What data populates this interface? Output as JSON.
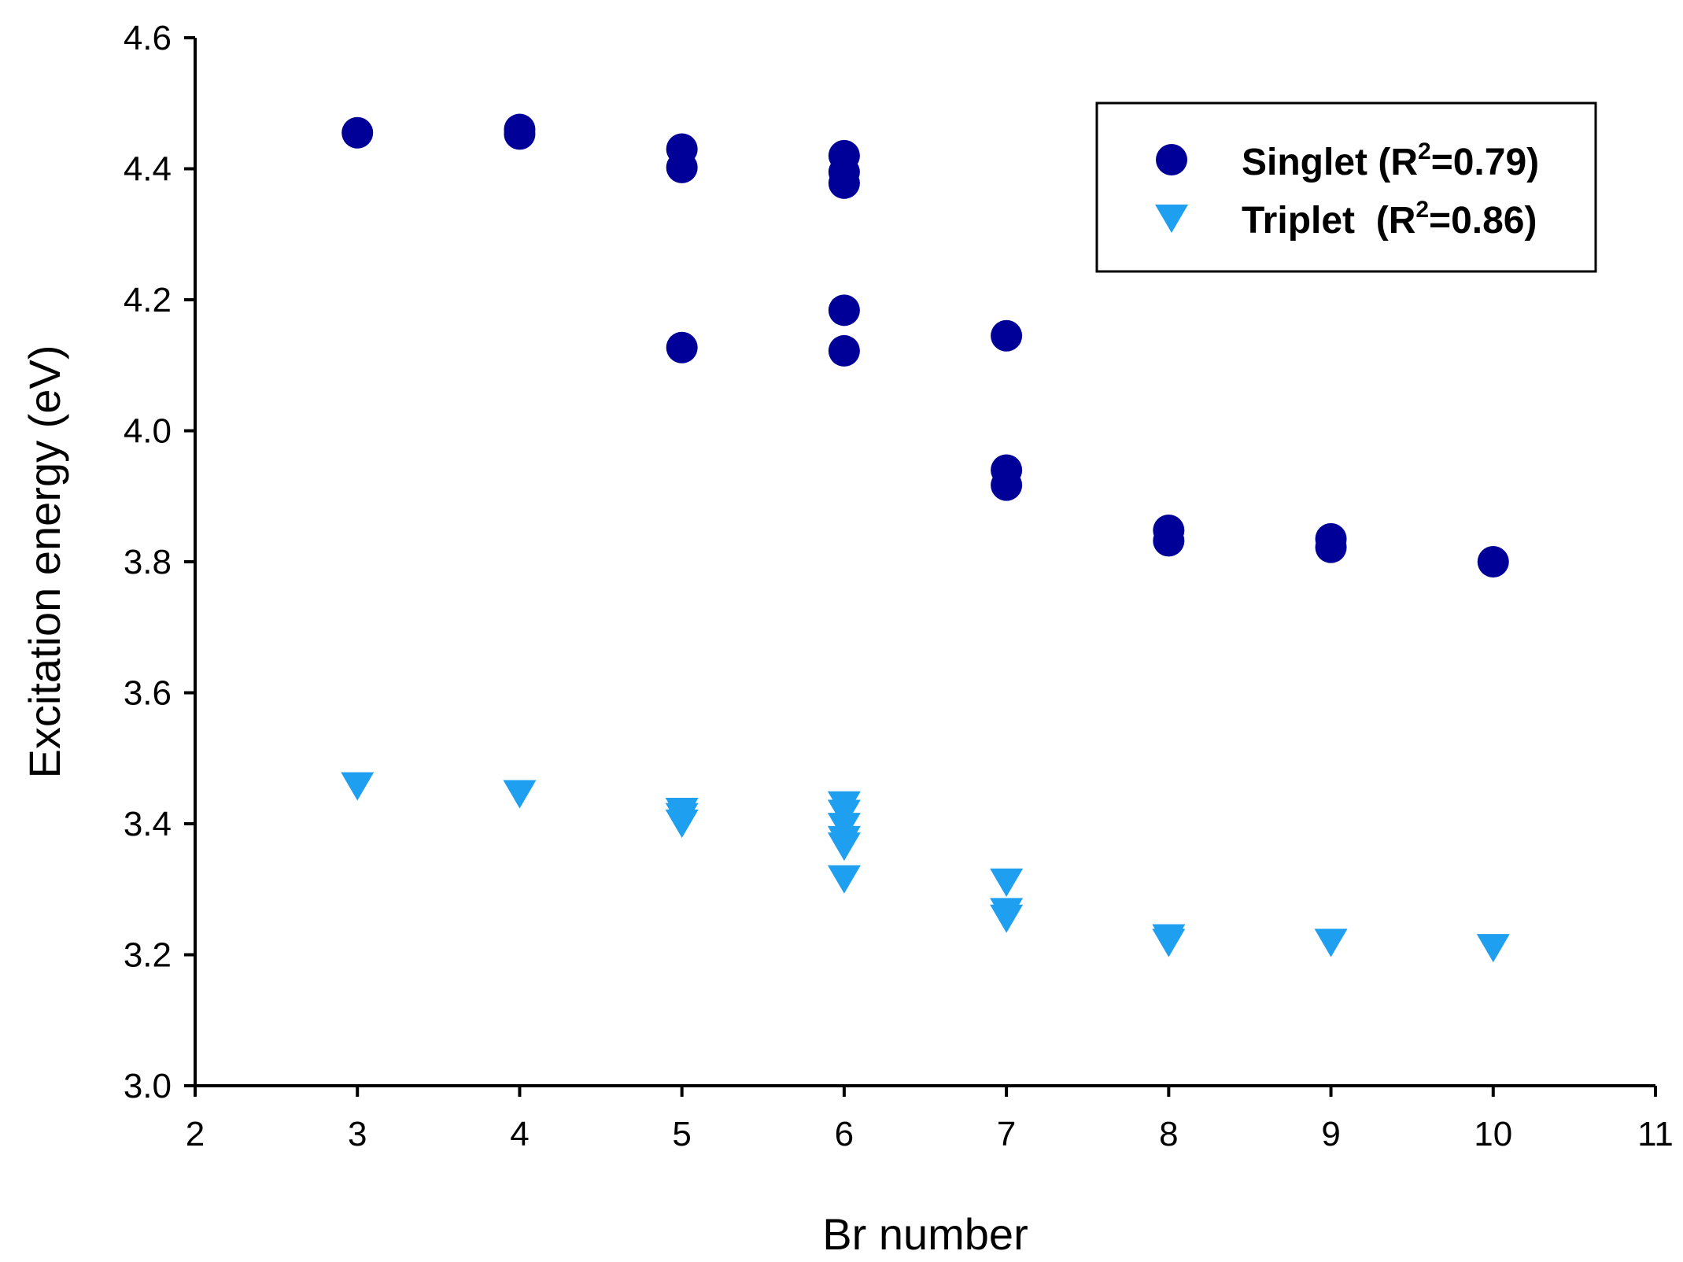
{
  "chart_data": {
    "type": "scatter",
    "xlabel": "Br number",
    "ylabel": "Excitation energy (eV)",
    "xlim": [
      2,
      11
    ],
    "ylim": [
      3.0,
      4.6
    ],
    "x_ticks": [
      "2",
      "3",
      "4",
      "5",
      "6",
      "7",
      "8",
      "9",
      "10",
      "11"
    ],
    "y_ticks": [
      "3.0",
      "3.2",
      "3.4",
      "3.6",
      "3.8",
      "4.0",
      "4.2",
      "4.4",
      "4.6"
    ],
    "grid": false,
    "legend_position": "top-right",
    "series": [
      {
        "name": "Singlet",
        "r2_label": "R",
        "r2_exp": "2",
        "r2_value": "=0.79)",
        "label_prefix": "Singlet (",
        "marker": "circle",
        "color": "#000099",
        "points": [
          {
            "x": 3,
            "y": 4.455
          },
          {
            "x": 4,
            "y": 4.46
          },
          {
            "x": 4,
            "y": 4.453
          },
          {
            "x": 5,
            "y": 4.43
          },
          {
            "x": 5,
            "y": 4.402
          },
          {
            "x": 5,
            "y": 4.127
          },
          {
            "x": 6,
            "y": 4.42
          },
          {
            "x": 6,
            "y": 4.395
          },
          {
            "x": 6,
            "y": 4.378
          },
          {
            "x": 6,
            "y": 4.184
          },
          {
            "x": 6,
            "y": 4.122
          },
          {
            "x": 7,
            "y": 4.145
          },
          {
            "x": 7,
            "y": 3.94
          },
          {
            "x": 7,
            "y": 3.917
          },
          {
            "x": 8,
            "y": 3.848
          },
          {
            "x": 8,
            "y": 3.832
          },
          {
            "x": 9,
            "y": 3.835
          },
          {
            "x": 9,
            "y": 3.822
          },
          {
            "x": 10,
            "y": 3.8
          }
        ]
      },
      {
        "name": "Triplet",
        "r2_label": "R",
        "r2_exp": "2",
        "r2_value": "=0.86)",
        "label_prefix": "Triplet  (",
        "marker": "triangle-down",
        "color": "#1f9ff0",
        "points": [
          {
            "x": 3,
            "y": 3.457
          },
          {
            "x": 4,
            "y": 3.445
          },
          {
            "x": 5,
            "y": 3.418
          },
          {
            "x": 5,
            "y": 3.41
          },
          {
            "x": 5,
            "y": 3.4
          },
          {
            "x": 6,
            "y": 3.428
          },
          {
            "x": 6,
            "y": 3.415
          },
          {
            "x": 6,
            "y": 3.395
          },
          {
            "x": 6,
            "y": 3.375
          },
          {
            "x": 6,
            "y": 3.365
          },
          {
            "x": 6,
            "y": 3.315
          },
          {
            "x": 7,
            "y": 3.31
          },
          {
            "x": 7,
            "y": 3.265
          },
          {
            "x": 7,
            "y": 3.255
          },
          {
            "x": 8,
            "y": 3.225
          },
          {
            "x": 8,
            "y": 3.218
          },
          {
            "x": 9,
            "y": 3.218
          },
          {
            "x": 10,
            "y": 3.21
          }
        ]
      }
    ]
  }
}
